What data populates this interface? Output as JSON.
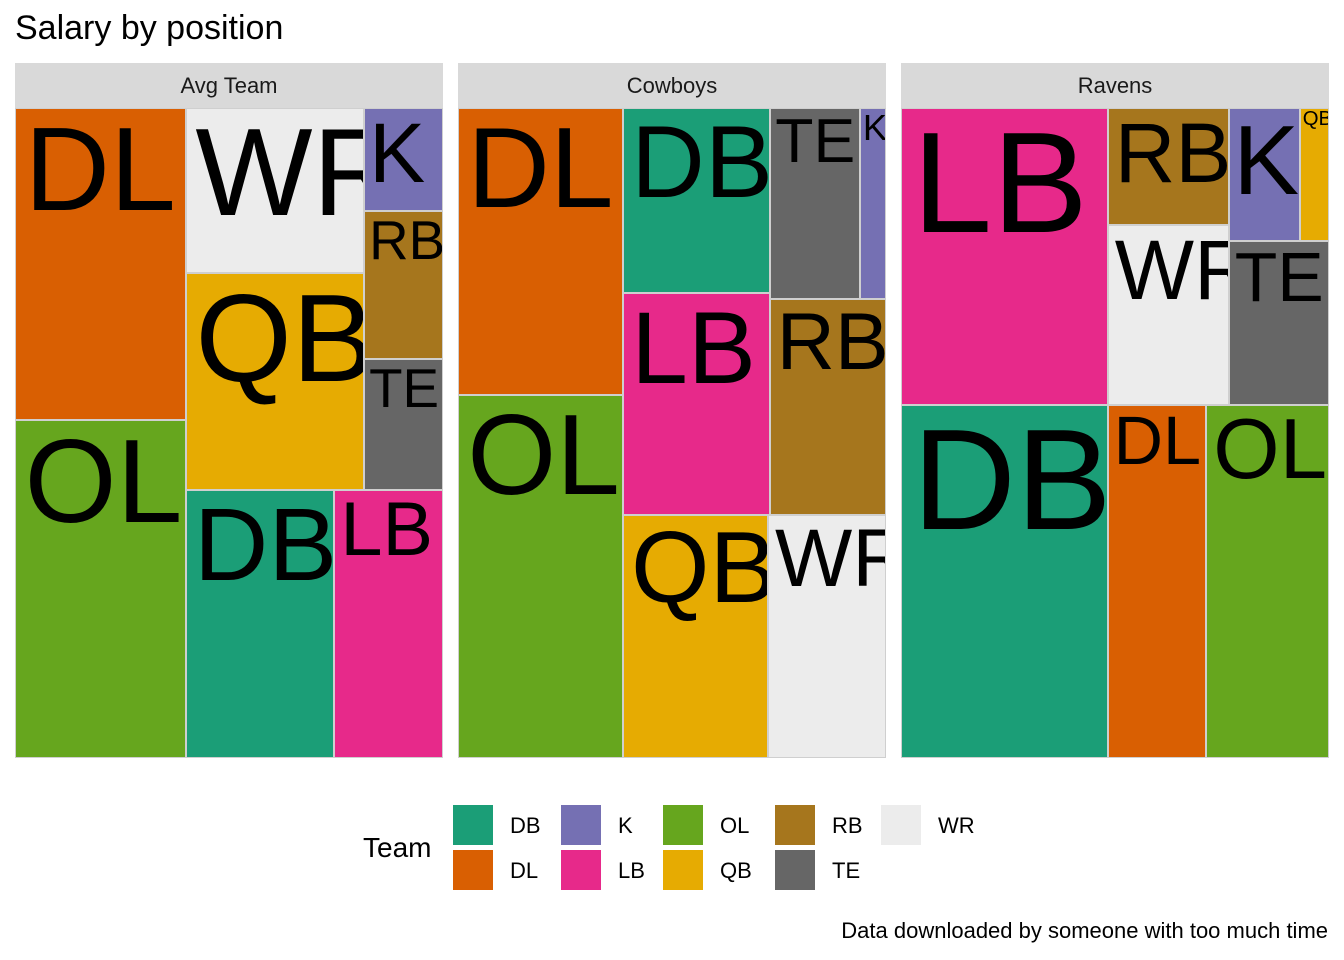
{
  "chart_data": {
    "type": "treemap",
    "title": "Salary by position",
    "caption": "Data downloaded by someone with too much time",
    "legend": {
      "title": "Team",
      "position": "bottom",
      "entries": [
        {
          "label": "DB",
          "color": "#1b9e77"
        },
        {
          "label": "DL",
          "color": "#d95f02"
        },
        {
          "label": "K",
          "color": "#7570b3"
        },
        {
          "label": "LB",
          "color": "#e7298a"
        },
        {
          "label": "OL",
          "color": "#66a61e"
        },
        {
          "label": "QB",
          "color": "#e6ab02"
        },
        {
          "label": "RB",
          "color": "#a6761d"
        },
        {
          "label": "TE",
          "color": "#666666"
        },
        {
          "label": "WR",
          "color": "#ececec"
        }
      ]
    },
    "panels": [
      {
        "name": "Avg Team",
        "values": {
          "DL": 0.191,
          "OL": 0.207,
          "WR": 0.106,
          "QB": 0.139,
          "DB": 0.143,
          "LB": 0.105,
          "K": 0.029,
          "RB": 0.042,
          "TE": 0.037
        }
      },
      {
        "name": "Cowboys",
        "values": {
          "DL": 0.17,
          "OL": 0.215,
          "DB": 0.098,
          "LB": 0.117,
          "QB": 0.127,
          "WR": 0.103,
          "TE": 0.062,
          "K": 0.018,
          "RB": 0.09
        }
      },
      {
        "name": "Ravens",
        "values": {
          "LB": 0.221,
          "DB": 0.262,
          "RB": 0.051,
          "WR": 0.078,
          "K": 0.034,
          "QB": 0.014,
          "TE": 0.059,
          "DL": 0.125,
          "OL": 0.156
        }
      }
    ]
  }
}
